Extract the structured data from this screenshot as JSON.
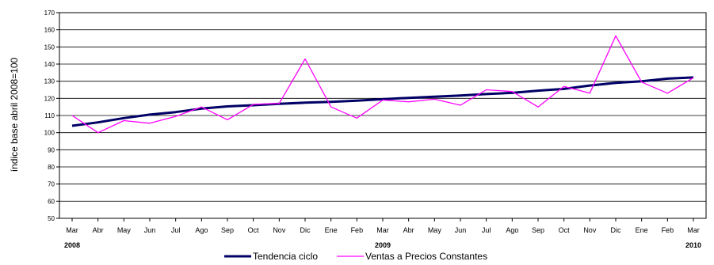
{
  "chart_data": {
    "type": "line",
    "title": "",
    "ylabel": "índice base abril 2008=100",
    "xlabel": "",
    "ylim": [
      50,
      170
    ],
    "yticks": [
      50,
      60,
      70,
      80,
      90,
      100,
      110,
      120,
      130,
      140,
      150,
      160,
      170
    ],
    "grid": true,
    "legend_position": "bottom",
    "categories": [
      "Mar",
      "Abr",
      "May",
      "Jun",
      "Jul",
      "Ago",
      "Sep",
      "Oct",
      "Nov",
      "Dic",
      "Ene",
      "Feb",
      "Mar",
      "Abr",
      "May",
      "Jun",
      "Jul",
      "Ago",
      "Sep",
      "Oct",
      "Nov",
      "Dic",
      "Ene",
      "Feb",
      "Mar"
    ],
    "year_labels": [
      {
        "label": "2008",
        "category_index": 0
      },
      {
        "label": "2009",
        "category_index": 12
      },
      {
        "label": "2010",
        "category_index": 24
      }
    ],
    "series": [
      {
        "name": "Tendencia ciclo",
        "color": "#000066",
        "values": [
          104,
          106,
          108.5,
          110.5,
          112,
          114,
          115.3,
          116,
          116.8,
          117.5,
          118,
          118.7,
          119.5,
          120.3,
          121,
          121.7,
          122.5,
          123.2,
          124.5,
          125.5,
          127.5,
          129,
          130,
          131.5,
          132.2
        ]
      },
      {
        "name": "Ventas a Precios Constantes",
        "color": "#ff00ff",
        "values": [
          110,
          100,
          107,
          105.5,
          109.5,
          115,
          107.5,
          116.5,
          117,
          143,
          115,
          108.5,
          119,
          118,
          119.5,
          116,
          125,
          124,
          115,
          127,
          123,
          156.5,
          129.5,
          123,
          132
        ]
      }
    ]
  }
}
